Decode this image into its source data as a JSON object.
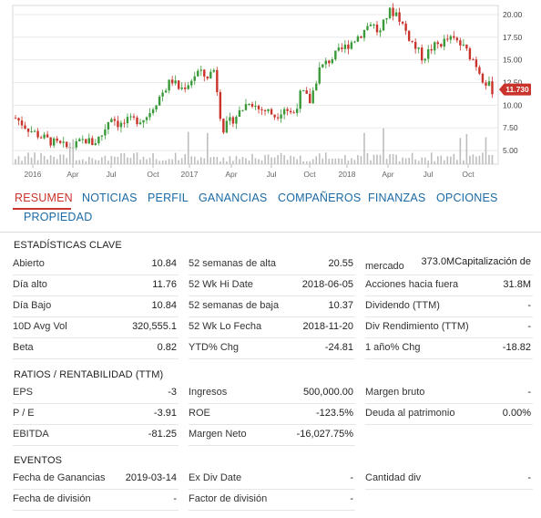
{
  "chart_data": {
    "type": "candlestick",
    "x_ticks": [
      "2016",
      "Apr",
      "Jul",
      "Oct",
      "2017",
      "Apr",
      "Jul",
      "Oct",
      "2018",
      "Apr",
      "Jul",
      "Oct"
    ],
    "y_ticks": [
      "20.00",
      "17.50",
      "15.00",
      "12.50",
      "10.00",
      "7.50",
      "5.00"
    ],
    "ylim": [
      3.5,
      21
    ],
    "last_price": "11.730",
    "colors": {
      "up": "#3a9a3a",
      "down": "#c9332b",
      "volume": "#bdbdbd",
      "grid": "#e9e9e9",
      "badge": "#c9332b"
    },
    "close_path": [
      [
        0,
        8.6
      ],
      [
        3,
        7.4
      ],
      [
        6,
        6.5
      ],
      [
        9,
        5.8
      ],
      [
        12,
        5.3
      ],
      [
        14,
        5.6
      ],
      [
        16,
        6.2
      ],
      [
        18,
        5.8
      ],
      [
        20,
        6.8
      ],
      [
        22,
        8.9
      ],
      [
        24,
        7.8
      ],
      [
        26,
        8.2
      ],
      [
        28,
        8.4
      ],
      [
        30,
        8.6
      ],
      [
        33,
        10.8
      ],
      [
        36,
        12.8
      ],
      [
        38,
        11.7
      ],
      [
        40,
        12.5
      ],
      [
        42,
        13.7
      ],
      [
        44,
        13.1
      ],
      [
        46,
        14.0
      ],
      [
        47,
        9.6
      ],
      [
        48,
        7.4
      ],
      [
        50,
        8.4
      ],
      [
        52,
        9.4
      ],
      [
        54,
        10.6
      ],
      [
        56,
        9.6
      ],
      [
        58,
        9.4
      ],
      [
        60,
        8.8
      ],
      [
        62,
        9.8
      ],
      [
        64,
        8.9
      ],
      [
        66,
        11.5
      ],
      [
        68,
        10.4
      ],
      [
        70,
        13.9
      ],
      [
        72,
        14.8
      ],
      [
        74,
        15.6
      ],
      [
        76,
        16.4
      ],
      [
        78,
        17.2
      ],
      [
        80,
        18.0
      ],
      [
        82,
        19.2
      ],
      [
        84,
        17.8
      ],
      [
        86,
        20.3
      ],
      [
        88,
        20.2
      ],
      [
        90,
        18.2
      ],
      [
        92,
        16.5
      ],
      [
        94,
        15.2
      ],
      [
        96,
        16.3
      ],
      [
        98,
        16.8
      ],
      [
        100,
        17.3
      ],
      [
        102,
        17.0
      ],
      [
        104,
        16.0
      ],
      [
        106,
        14.8
      ],
      [
        108,
        12.8
      ],
      [
        110,
        11.7
      ]
    ]
  },
  "tabs": [
    "RESUMEN",
    "NOTICIAS",
    "PERFIL",
    "GANANCIAS",
    "COMPAÑEROS",
    "FINANZAS",
    "OPCIONES",
    "PROPIEDAD"
  ],
  "key_stats": {
    "title": "ESTADÍSTICAS CLAVE",
    "col1": [
      {
        "label": "Abierto",
        "value": "10.84"
      },
      {
        "label": "Día alto",
        "value": "11.76"
      },
      {
        "label": "Día Bajo",
        "value": "10.84"
      },
      {
        "label": "10D Avg Vol",
        "value": "320,555.1"
      },
      {
        "label": "Beta",
        "value": "0.82"
      }
    ],
    "col2": [
      {
        "label": "52 semanas de alta",
        "value": "20.55"
      },
      {
        "label": "52 Wk Hi Date",
        "value": "2018-06-05"
      },
      {
        "label": "52 semanas de baja",
        "value": "10.37"
      },
      {
        "label": "52 Wk Lo Fecha",
        "value": "2018-11-20"
      },
      {
        "label": "YTD% Chg",
        "value": "-24.81"
      }
    ],
    "col3": [
      {
        "label": "mercado",
        "value": "373.0MCapitalización de"
      },
      {
        "label": "Acciones hacia fuera",
        "value": "31.8M"
      },
      {
        "label": "Dividendo (TTM)",
        "value": "-"
      },
      {
        "label": "Div Rendimiento (TTM)",
        "value": "-"
      },
      {
        "label": "1 año% Chg",
        "value": "-18.82"
      }
    ]
  },
  "ratios": {
    "title": "RATIOS / RENTABILIDAD (TTM)",
    "col1": [
      {
        "label": "EPS",
        "value": "-3"
      },
      {
        "label": "P / E",
        "value": "-3.91"
      },
      {
        "label": "EBITDA",
        "value": "-81.25"
      }
    ],
    "col2": [
      {
        "label": "Ingresos",
        "value": "500,000.00"
      },
      {
        "label": "ROE",
        "value": "-123.5%"
      },
      {
        "label": "Margen Neto",
        "value": "-16,027.75%"
      }
    ],
    "col3": [
      {
        "label": "Margen bruto",
        "value": "-"
      },
      {
        "label": "Deuda al patrimonio",
        "value": "0.00%"
      }
    ]
  },
  "events": {
    "title": "EVENTOS",
    "col1": [
      {
        "label": "Fecha de Ganancias",
        "value": "2019-03-14"
      },
      {
        "label": "Fecha de división",
        "value": "-"
      }
    ],
    "col2": [
      {
        "label": "Ex Div Date",
        "value": "-"
      },
      {
        "label": "Factor de división",
        "value": "-"
      }
    ],
    "col3": [
      {
        "label": "Cantidad div",
        "value": "-"
      }
    ]
  }
}
